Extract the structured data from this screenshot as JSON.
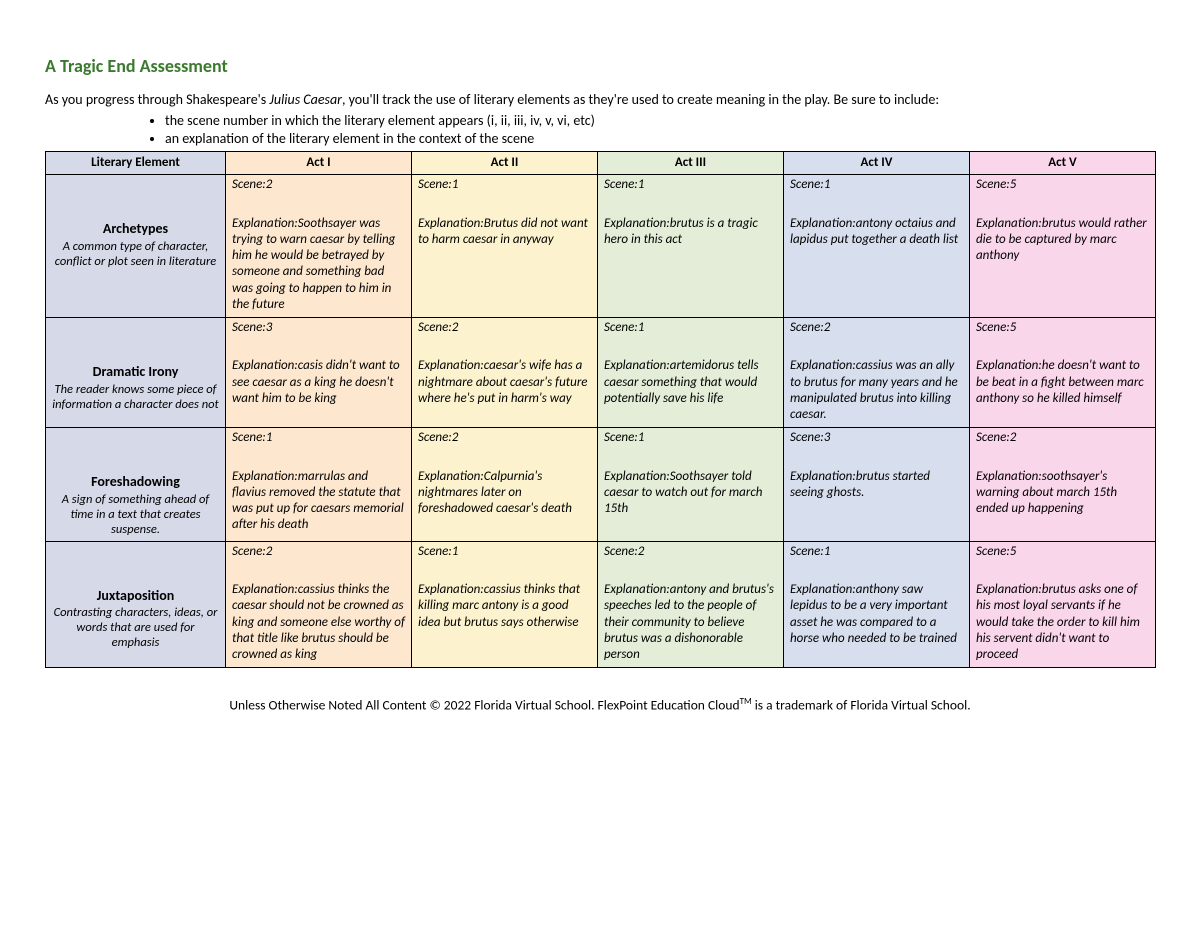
{
  "title": "A Tragic End Assessment",
  "intro_pre": "As you progress through Shakespeare's ",
  "intro_italic": "Julius Caesar",
  "intro_post": ", you'll track the use of literary elements as they're used to create meaning in the play. Be sure to include:",
  "bullet1": "the scene number in which the literary element appears (i, ii, iii, iv, v, vi, etc)",
  "bullet2": "an explanation of the literary element in the context of the scene",
  "columns": {
    "literary": "Literary Element",
    "act1": "Act I",
    "act2": "Act II",
    "act3": "Act III",
    "act4": "Act IV",
    "act5": "Act V"
  },
  "colors": {
    "header0": "#d6d9e8",
    "header1": "#fde8cf",
    "header2": "#fcf3ce",
    "header3": "#e3edd8",
    "header4": "#d7dfee",
    "header5": "#fad6eb",
    "title_color": "#3b7a2e"
  },
  "rows": [
    {
      "name": "Archetypes",
      "desc": "A common type of character, conflict or plot seen in literature",
      "cells": [
        {
          "scene": "Scene:2",
          "expl": "Explanation:Soothsayer was trying to warn caesar by telling him he would be betrayed by someone and something bad was going to happen to him in the future"
        },
        {
          "scene": "Scene:1",
          "expl": "Explanation:Brutus did not want to harm caesar in anyway"
        },
        {
          "scene": "Scene:1",
          "expl": "Explanation:brutus is a tragic hero in this act"
        },
        {
          "scene": "Scene:1",
          "expl": "Explanation:antony octaius and lapidus put together a death list"
        },
        {
          "scene": "Scene:5",
          "expl": "Explanation:brutus would rather die to be captured by marc anthony"
        }
      ]
    },
    {
      "name": "Dramatic Irony",
      "desc": "The reader knows some piece of information a character does not",
      "cells": [
        {
          "scene": "Scene:3",
          "expl": "Explanation:casis didn't want to see caesar as a king he doesn't want him to be king"
        },
        {
          "scene": "Scene:2",
          "expl": "Explanation:caesar's wife has a nightmare about caesar's future where he's put in harm's way"
        },
        {
          "scene": "Scene:1",
          "expl": "Explanation:artemidorus tells caesar something that would potentially save his life"
        },
        {
          "scene": "Scene:2",
          "expl": "Explanation:cassius was an ally to brutus for many years and he manipulated brutus into killing caesar."
        },
        {
          "scene": "Scene:5",
          "expl": "Explanation:he doesn't want to be beat in a fight between marc anthony so he killed himself"
        }
      ]
    },
    {
      "name": "Foreshadowing",
      "desc": "A sign of something ahead of time in a text that creates suspense.",
      "cells": [
        {
          "scene": "Scene:1",
          "expl": "Explanation:marrulas and flavius removed the statute that was put up for caesars memorial after his death"
        },
        {
          "scene": "Scene:2",
          "expl": "Explanation:Calpurnia's nightmares later on foreshadowed caesar's death"
        },
        {
          "scene": "Scene:1",
          "expl": "Explanation:Soothsayer told caesar to watch out for march 15th"
        },
        {
          "scene": "Scene:3",
          "expl": "Explanation:brutus started seeing ghosts."
        },
        {
          "scene": "Scene:2",
          "expl": "Explanation:soothsayer's warning about march 15th ended up happening"
        }
      ]
    },
    {
      "name": "Juxtaposition",
      "desc": "Contrasting characters, ideas, or words that are used for emphasis",
      "cells": [
        {
          "scene": "Scene:2",
          "expl": "Explanation:cassius thinks the caesar should not be crowned as king and someone else worthy of that title like brutus should be crowned as king"
        },
        {
          "scene": "Scene:1",
          "expl": "Explanation:cassius thinks that killing marc antony is a good idea but brutus says otherwise"
        },
        {
          "scene": "Scene:2",
          "expl": "Explanation:antony and brutus's speeches led to the people of their community to believe brutus was a dishonorable person"
        },
        {
          "scene": "Scene:1",
          "expl": "Explanation:anthony saw lepidus to be a very important asset he was compared to a horse who needed to be trained"
        },
        {
          "scene": "Scene:5",
          "expl": "Explanation:brutus asks one of his most loyal servants if he would take the order to kill him his servent didn't want to proceed"
        }
      ]
    }
  ],
  "footer_pre": "Unless Otherwise Noted All Content © 2022 Florida Virtual School. FlexPoint Education Cloud",
  "footer_tm": "TM",
  "footer_post": " is a trademark of Florida Virtual School."
}
